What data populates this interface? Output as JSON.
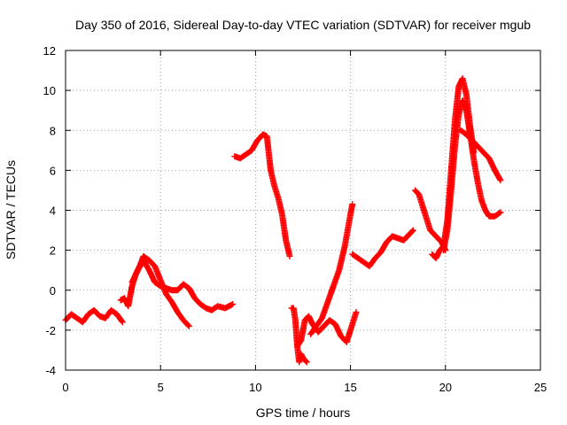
{
  "chart_data": {
    "type": "scatter",
    "title": "Day 350 of 2016, Sidereal Day-to-day VTEC variation (SDTVAR) for receiver mgub",
    "xlabel": "GPS time / hours",
    "ylabel": "SDTVAR / TECUs",
    "xlim": [
      0,
      25
    ],
    "ylim": [
      -4,
      12
    ],
    "xticks": [
      0,
      5,
      10,
      15,
      20,
      25
    ],
    "yticks": [
      -4,
      -2,
      0,
      2,
      4,
      6,
      8,
      10,
      12
    ],
    "grid": true,
    "marker": "+",
    "color": "#ff0000",
    "series": [
      {
        "x": [
          0.0,
          0.3,
          0.6,
          0.9,
          1.2,
          1.5,
          1.8,
          2.1,
          2.4,
          2.7,
          3.0
        ],
        "y": [
          -1.5,
          -1.2,
          -1.4,
          -1.6,
          -1.2,
          -1.0,
          -1.3,
          -1.4,
          -1.0,
          -1.2,
          -1.6
        ]
      },
      {
        "x": [
          2.9,
          3.1,
          3.3,
          3.5,
          3.7,
          3.9,
          4.1,
          4.4,
          4.7,
          5.0,
          5.3,
          5.6,
          5.9,
          6.2,
          6.5
        ],
        "y": [
          -0.5,
          -0.4,
          -0.8,
          0.2,
          0.8,
          1.2,
          1.7,
          1.5,
          1.2,
          0.5,
          -0.2,
          -0.6,
          -1.1,
          -1.5,
          -1.8
        ]
      },
      {
        "x": [
          3.5,
          3.8,
          4.1,
          4.4,
          4.7,
          5.0,
          5.3,
          5.6,
          5.9,
          6.2,
          6.5,
          6.8,
          7.1,
          7.4,
          7.7,
          8.0,
          8.4,
          8.8
        ],
        "y": [
          0.4,
          1.0,
          1.5,
          1.0,
          0.4,
          0.2,
          0.1,
          0.0,
          0.0,
          0.3,
          0.1,
          -0.4,
          -0.7,
          -0.9,
          -1.0,
          -0.8,
          -0.9,
          -0.7
        ]
      },
      {
        "x": [
          8.9,
          9.2,
          9.5,
          9.8,
          10.1,
          10.4,
          10.6,
          10.8,
          11.0,
          11.2,
          11.4,
          11.6,
          11.8
        ],
        "y": [
          6.7,
          6.6,
          6.8,
          7.0,
          7.5,
          7.8,
          7.7,
          6.0,
          5.2,
          4.6,
          3.8,
          2.5,
          1.7
        ]
      },
      {
        "x": [
          11.9,
          12.0,
          12.1,
          12.2,
          12.3,
          12.4,
          12.5,
          12.6,
          12.7
        ],
        "y": [
          -0.9,
          -0.9,
          -1.5,
          -2.8,
          -3.6,
          -3.2,
          -3.4,
          -3.5,
          -3.6
        ]
      },
      {
        "x": [
          12.2,
          12.4,
          12.6,
          12.8,
          13.0,
          13.3,
          13.6,
          13.9,
          14.2,
          14.5,
          14.8,
          15.1,
          15.3
        ],
        "y": [
          -2.8,
          -2.5,
          -1.5,
          -1.3,
          -1.7,
          -2.1,
          -1.8,
          -1.5,
          -1.7,
          -2.3,
          -2.6,
          -1.7,
          -1.1
        ]
      },
      {
        "x": [
          12.9,
          13.2,
          13.5,
          13.8,
          14.1,
          14.4,
          14.7,
          15.0,
          15.1
        ],
        "y": [
          -2.2,
          -1.8,
          -1.4,
          -0.6,
          0.2,
          1.0,
          2.2,
          3.8,
          4.3
        ]
      },
      {
        "x": [
          15.1,
          15.4,
          15.7,
          16.0,
          16.3,
          16.6,
          16.9,
          17.2,
          17.5,
          17.8,
          18.1,
          18.3
        ],
        "y": [
          1.8,
          1.6,
          1.4,
          1.2,
          1.6,
          1.9,
          2.4,
          2.7,
          2.6,
          2.5,
          2.8,
          3.0
        ]
      },
      {
        "x": [
          18.4,
          18.6,
          18.8,
          19.0,
          19.2,
          19.4,
          19.6,
          19.8,
          20.0
        ],
        "y": [
          5.0,
          4.8,
          4.2,
          3.6,
          3.0,
          2.8,
          2.6,
          2.4,
          2.0
        ]
      },
      {
        "x": [
          19.3,
          19.5,
          19.7,
          19.9,
          20.1,
          20.3,
          20.5,
          20.7,
          20.9,
          21.1,
          21.3,
          21.5
        ],
        "y": [
          1.8,
          1.6,
          2.0,
          2.2,
          3.5,
          6.0,
          8.5,
          10.2,
          10.6,
          9.8,
          8.2,
          6.9
        ]
      },
      {
        "x": [
          19.9,
          20.1,
          20.3,
          20.5,
          20.7,
          20.9,
          21.1,
          21.3,
          21.5,
          21.7,
          21.9,
          22.1,
          22.3,
          22.6,
          22.9
        ],
        "y": [
          2.0,
          3.0,
          5.0,
          7.2,
          8.8,
          9.5,
          9.0,
          7.8,
          6.5,
          5.4,
          4.5,
          4.0,
          3.7,
          3.7,
          3.9
        ]
      },
      {
        "x": [
          20.8,
          21.1,
          21.4,
          21.7,
          22.0,
          22.3,
          22.6,
          22.9
        ],
        "y": [
          8.0,
          7.8,
          7.5,
          7.2,
          6.9,
          6.6,
          6.0,
          5.5
        ]
      }
    ]
  }
}
